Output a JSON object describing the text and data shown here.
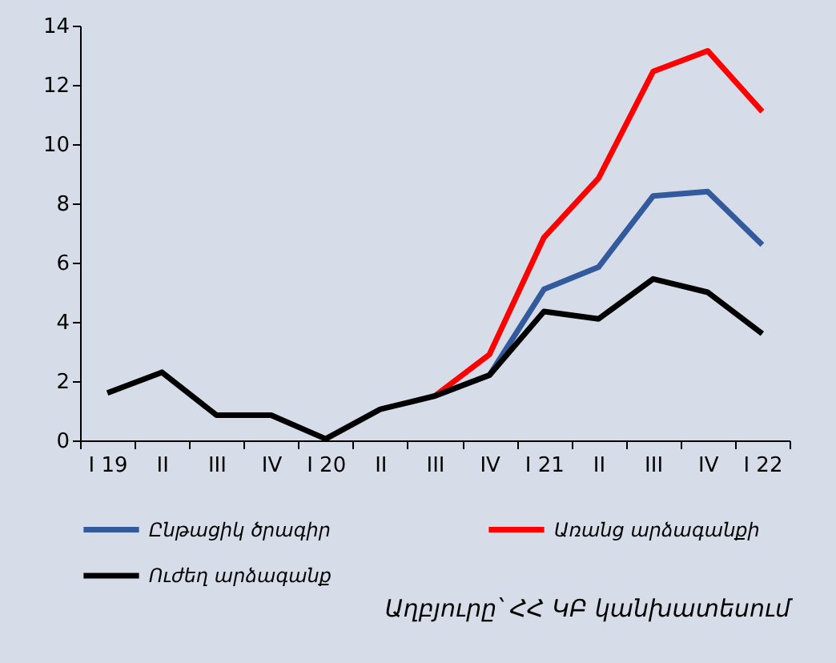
{
  "chart_data": {
    "type": "line",
    "categories": [
      "I 19",
      "II",
      "III",
      "IV",
      "I 20",
      "II",
      "III",
      "IV",
      "I 21",
      "II",
      "III",
      "IV",
      "I 22"
    ],
    "series": [
      {
        "name": "Ընթացիկ ծրագիր",
        "color": "#325a9c",
        "values": [
          null,
          null,
          null,
          null,
          null,
          null,
          1.5,
          2.2,
          5.1,
          5.85,
          8.25,
          8.4,
          6.6
        ]
      },
      {
        "name": "Առանց արձագանքի",
        "color": "#ff0000",
        "values": [
          null,
          null,
          null,
          null,
          null,
          null,
          1.5,
          2.9,
          6.85,
          8.85,
          12.45,
          13.15,
          11.1
        ]
      },
      {
        "name": "Ուժեղ արձագանք",
        "color": "#000000",
        "values": [
          1.6,
          2.3,
          0.85,
          0.85,
          0.05,
          1.05,
          1.5,
          2.2,
          4.35,
          4.1,
          5.45,
          5.0,
          3.6
        ]
      }
    ],
    "ylim": [
      0,
      14
    ],
    "yticks": [
      0,
      2,
      4,
      6,
      8,
      10,
      12,
      14
    ],
    "grid": false,
    "legend": "bottom",
    "annotations": [
      "Աղբյուրը՝ ՀՀ ԿԲ կանխատեսում"
    ]
  }
}
